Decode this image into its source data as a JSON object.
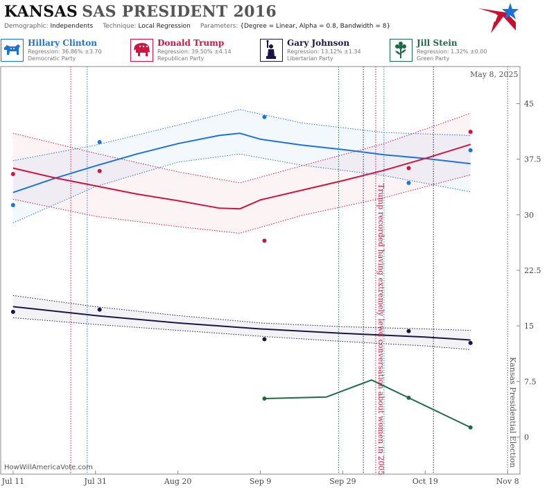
{
  "header": {
    "state": "KANSAS",
    "title_rest": "SAS PRESIDENT 2016",
    "demographic_label": "Demographic:",
    "demographic_value": "Independents",
    "technique_label": "Technique:",
    "technique_value": "Local Regression",
    "parameters_label": "Parameters:",
    "parameters_value": "{Degree = Linear, Alpha = 0.8, Bandwidth = 8}"
  },
  "candidates": [
    {
      "name": "Hillary Clinton",
      "regression": "Regression: 36.86% ±3.70",
      "party": "Democratic Party",
      "color": "#1a73d9",
      "icon": "donkey-icon"
    },
    {
      "name": "Donald Trump",
      "regression": "Regression: 39.50% ±4.14",
      "party": "Republican Party",
      "color": "#cc1541",
      "icon": "elephant-icon"
    },
    {
      "name": "Gary Johnson",
      "regression": "Regression: 13.12% ±1.34",
      "party": "Libertarian Party",
      "color": "#1b1446",
      "icon": "statue-of-liberty-icon"
    },
    {
      "name": "Jill Stein",
      "regression": "Regression: 1.32% ±0.00",
      "party": "Green Party",
      "color": "#1a6b45",
      "icon": "flower-icon"
    }
  ],
  "datestamp": "May 8, 2025",
  "watermark": "HowWillAmericaVote.com",
  "chart_data": {
    "type": "line",
    "x_ticks": [
      "Jul 11",
      "Jul 31",
      "Aug 20",
      "Sep 9",
      "Sep 29",
      "Oct 19",
      "Nov 8"
    ],
    "xlim": [
      "2016-07-08",
      "2016-11-11"
    ],
    "ylim": [
      -5,
      50
    ],
    "y_ticks": [
      0,
      7.5,
      15,
      22.5,
      30,
      37.5,
      45
    ],
    "y_tick_labels": [
      "0",
      "7.5",
      "15",
      "22.5",
      "30",
      "37.5",
      "45"
    ],
    "grid": false,
    "annotations": [
      {
        "date": "2016-10-07",
        "text": "Trump recorded having extremely lewd conversation about women in 2005",
        "color": "#cc1541"
      },
      {
        "date": "2016-11-08",
        "text": "Kansas Presidential Election",
        "color": "#555555"
      }
    ],
    "vlines": [
      {
        "date": "2016-07-25",
        "color": "#cc1541",
        "style": "dotted"
      },
      {
        "date": "2016-07-29",
        "color": "#1a73d9",
        "style": "dotted"
      },
      {
        "date": "2016-09-28",
        "color": "#1a6b45",
        "style": "dotted"
      },
      {
        "date": "2016-10-04",
        "color": "#1b1446",
        "style": "dotted"
      },
      {
        "date": "2016-10-07",
        "color": "#cc1541",
        "style": "dotted"
      },
      {
        "date": "2016-10-09",
        "color": "#1a73d9",
        "style": "dotted"
      },
      {
        "date": "2016-10-21",
        "color": "#1b1446",
        "style": "dotted"
      },
      {
        "date": "2016-11-08",
        "color": "#555555",
        "style": "dotted"
      }
    ],
    "series": [
      {
        "name": "Hillary Clinton",
        "color": "#1a73d9",
        "points": [
          [
            "2016-07-11",
            31.3
          ],
          [
            "2016-08-01",
            39.8
          ],
          [
            "2016-09-10",
            43.2
          ],
          [
            "2016-10-15",
            34.3
          ],
          [
            "2016-10-30",
            38.7
          ]
        ],
        "fit": [
          [
            "2016-07-11",
            33.0
          ],
          [
            "2016-07-21",
            34.9
          ],
          [
            "2016-07-31",
            36.6
          ],
          [
            "2016-08-10",
            38.2
          ],
          [
            "2016-08-20",
            39.6
          ],
          [
            "2016-08-30",
            40.7
          ],
          [
            "2016-09-04",
            41.0
          ],
          [
            "2016-09-09",
            40.2
          ],
          [
            "2016-09-19",
            39.4
          ],
          [
            "2016-09-29",
            38.8
          ],
          [
            "2016-10-09",
            38.1
          ],
          [
            "2016-10-19",
            37.6
          ],
          [
            "2016-10-30",
            36.9
          ]
        ],
        "upper": [
          [
            "2016-07-11",
            37.3
          ],
          [
            "2016-07-31",
            39.4
          ],
          [
            "2016-08-20",
            42.1
          ],
          [
            "2016-09-04",
            44.2
          ],
          [
            "2016-09-19",
            42.4
          ],
          [
            "2016-10-09",
            41.1
          ],
          [
            "2016-10-30",
            40.7
          ]
        ],
        "lower": [
          [
            "2016-07-11",
            28.9
          ],
          [
            "2016-07-31",
            33.8
          ],
          [
            "2016-08-20",
            37.1
          ],
          [
            "2016-09-04",
            38.2
          ],
          [
            "2016-09-19",
            36.7
          ],
          [
            "2016-10-09",
            35.3
          ],
          [
            "2016-10-30",
            33.1
          ]
        ]
      },
      {
        "name": "Donald Trump",
        "color": "#cc1541",
        "points": [
          [
            "2016-07-11",
            35.5
          ],
          [
            "2016-08-01",
            35.9
          ],
          [
            "2016-09-10",
            26.5
          ],
          [
            "2016-10-15",
            36.3
          ],
          [
            "2016-10-30",
            41.2
          ]
        ],
        "fit": [
          [
            "2016-07-11",
            36.3
          ],
          [
            "2016-07-21",
            35.0
          ],
          [
            "2016-07-31",
            33.9
          ],
          [
            "2016-08-10",
            32.8
          ],
          [
            "2016-08-20",
            31.9
          ],
          [
            "2016-08-30",
            30.9
          ],
          [
            "2016-09-04",
            30.8
          ],
          [
            "2016-09-09",
            32.0
          ],
          [
            "2016-09-19",
            33.3
          ],
          [
            "2016-09-29",
            34.6
          ],
          [
            "2016-10-09",
            36.0
          ],
          [
            "2016-10-19",
            37.6
          ],
          [
            "2016-10-30",
            39.5
          ]
        ],
        "upper": [
          [
            "2016-07-11",
            41.0
          ],
          [
            "2016-07-31",
            38.3
          ],
          [
            "2016-08-20",
            35.8
          ],
          [
            "2016-09-04",
            34.3
          ],
          [
            "2016-09-19",
            36.6
          ],
          [
            "2016-10-09",
            39.6
          ],
          [
            "2016-10-30",
            43.7
          ]
        ],
        "lower": [
          [
            "2016-07-11",
            32.1
          ],
          [
            "2016-07-31",
            29.8
          ],
          [
            "2016-08-20",
            28.4
          ],
          [
            "2016-09-04",
            27.5
          ],
          [
            "2016-09-19",
            29.9
          ],
          [
            "2016-10-09",
            32.3
          ],
          [
            "2016-10-30",
            35.4
          ]
        ]
      },
      {
        "name": "Gary Johnson",
        "color": "#1b1446",
        "points": [
          [
            "2016-07-11",
            16.9
          ],
          [
            "2016-08-01",
            17.2
          ],
          [
            "2016-09-10",
            13.2
          ],
          [
            "2016-10-15",
            14.3
          ],
          [
            "2016-10-30",
            12.7
          ]
        ],
        "fit": [
          [
            "2016-07-11",
            17.6
          ],
          [
            "2016-07-31",
            16.4
          ],
          [
            "2016-08-20",
            15.4
          ],
          [
            "2016-09-09",
            14.6
          ],
          [
            "2016-09-29",
            14.0
          ],
          [
            "2016-10-19",
            13.5
          ],
          [
            "2016-10-30",
            13.1
          ]
        ],
        "upper": [
          [
            "2016-07-11",
            19.1
          ],
          [
            "2016-07-31",
            17.6
          ],
          [
            "2016-08-20",
            16.4
          ],
          [
            "2016-09-09",
            15.4
          ],
          [
            "2016-09-29",
            14.9
          ],
          [
            "2016-10-19",
            14.6
          ],
          [
            "2016-10-30",
            14.4
          ]
        ],
        "lower": [
          [
            "2016-07-11",
            16.1
          ],
          [
            "2016-07-31",
            15.2
          ],
          [
            "2016-08-20",
            14.4
          ],
          [
            "2016-09-09",
            13.6
          ],
          [
            "2016-09-29",
            12.9
          ],
          [
            "2016-10-19",
            12.3
          ],
          [
            "2016-10-30",
            11.8
          ]
        ]
      },
      {
        "name": "Jill Stein",
        "color": "#1a6b45",
        "points": [
          [
            "2016-09-10",
            5.2
          ],
          [
            "2016-10-15",
            5.3
          ],
          [
            "2016-10-30",
            1.3
          ]
        ],
        "fit": [
          [
            "2016-09-10",
            5.2
          ],
          [
            "2016-09-25",
            5.4
          ],
          [
            "2016-10-06",
            7.7
          ],
          [
            "2016-10-15",
            5.3
          ],
          [
            "2016-10-30",
            1.3
          ]
        ]
      }
    ]
  }
}
